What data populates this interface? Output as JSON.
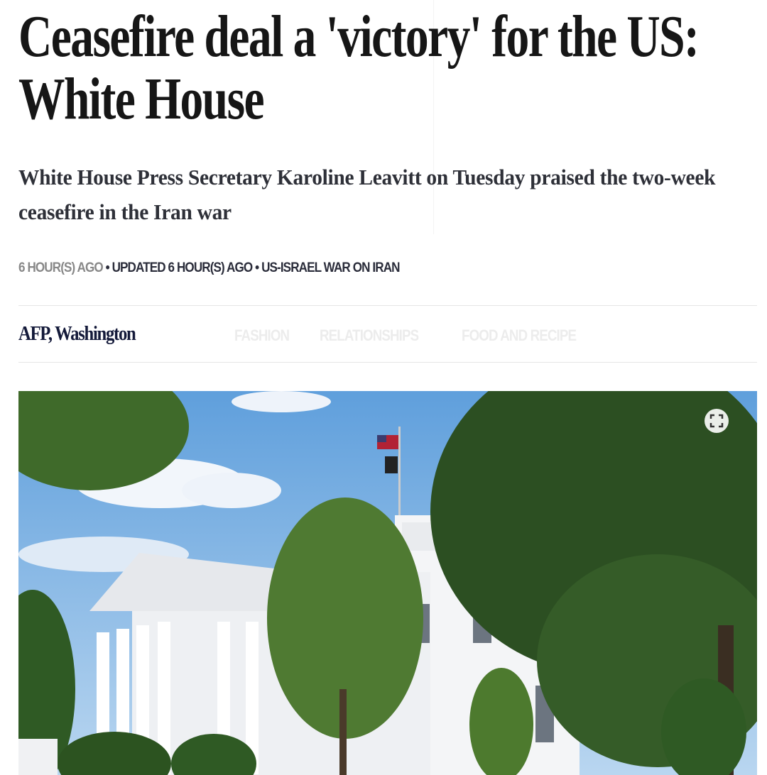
{
  "overlay_menu": [
    "FASHION",
    "RELATIONSHIPS",
    "FOOD AND RECIPE"
  ],
  "article": {
    "headline": "Ceasefire deal a 'victory' for the US: White House",
    "subheadline": "White House Press Secretary Karoline Leavitt on Tuesday praised the two-week ceasefire in the Iran war",
    "meta": {
      "published": "6 HOUR(S) AGO",
      "updated": "UPDATED 6 HOUR(S) AGO",
      "category": "US-ISRAEL WAR ON IRAN",
      "separator": "•"
    },
    "byline": "AFP, Washington",
    "image": {
      "icon": "expand-icon",
      "description_icon": "white-house-photo"
    }
  }
}
